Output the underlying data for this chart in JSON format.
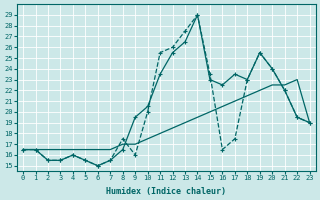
{
  "xlabel": "Humidex (Indice chaleur)",
  "bg_color": "#cce8e8",
  "grid_color": "#ffffff",
  "line_color": "#006666",
  "xlim": [
    -0.5,
    23.5
  ],
  "ylim": [
    14.5,
    30.0
  ],
  "xticks": [
    0,
    1,
    2,
    3,
    4,
    5,
    6,
    7,
    8,
    9,
    10,
    11,
    12,
    13,
    14,
    15,
    16,
    17,
    18,
    19,
    20,
    21,
    22,
    23
  ],
  "yticks": [
    15,
    16,
    17,
    18,
    19,
    20,
    21,
    22,
    23,
    24,
    25,
    26,
    27,
    28,
    29
  ],
  "series": [
    {
      "x": [
        0,
        1,
        2,
        3,
        4,
        5,
        6,
        7,
        8,
        9,
        10,
        11,
        12,
        13,
        14,
        15,
        16,
        17,
        18,
        19,
        20,
        21,
        22,
        23
      ],
      "y": [
        16.5,
        16.5,
        15.5,
        15.5,
        16.0,
        15.5,
        15.0,
        15.5,
        17.5,
        16.0,
        20.0,
        25.5,
        26.0,
        27.5,
        29.0,
        23.5,
        16.5,
        17.5,
        23.0,
        25.5,
        24.0,
        22.0,
        19.5,
        19.0
      ],
      "linestyle": "--",
      "marker": "+"
    },
    {
      "x": [
        0,
        1,
        2,
        3,
        4,
        5,
        6,
        7,
        8,
        9,
        10,
        11,
        12,
        13,
        14,
        15,
        16,
        17,
        18,
        19,
        20,
        21,
        22,
        23
      ],
      "y": [
        16.5,
        16.5,
        15.5,
        15.5,
        16.0,
        15.5,
        15.0,
        15.5,
        16.5,
        19.5,
        20.5,
        23.5,
        25.5,
        26.5,
        29.0,
        23.0,
        22.5,
        23.5,
        23.0,
        25.5,
        24.0,
        22.0,
        19.5,
        19.0
      ],
      "linestyle": "-",
      "marker": "+"
    },
    {
      "x": [
        0,
        1,
        2,
        3,
        4,
        5,
        6,
        7,
        8,
        9,
        10,
        11,
        12,
        13,
        14,
        15,
        16,
        17,
        18,
        19,
        20,
        21,
        22,
        23
      ],
      "y": [
        16.5,
        16.5,
        16.5,
        16.5,
        16.5,
        16.5,
        16.5,
        16.5,
        17.0,
        17.0,
        17.5,
        18.0,
        18.5,
        19.0,
        19.5,
        20.0,
        20.5,
        21.0,
        21.5,
        22.0,
        22.5,
        22.5,
        23.0,
        19.0
      ],
      "linestyle": "-",
      "marker": null
    }
  ],
  "xlabel_fontsize": 6.0,
  "tick_fontsize": 5.0
}
